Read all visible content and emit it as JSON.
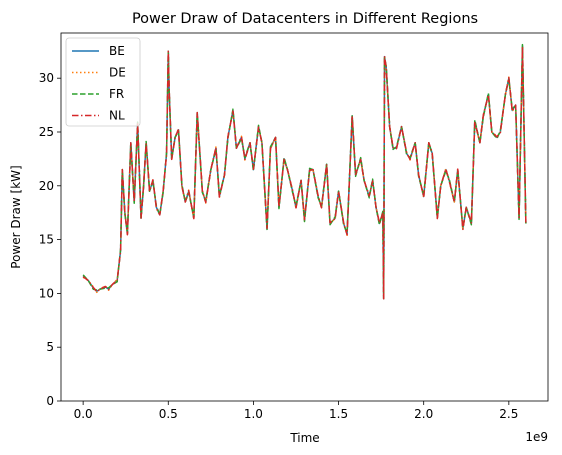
{
  "chart_data": {
    "type": "line",
    "title": "Power Draw of Datacenters in Different Regions",
    "xlabel": "Time",
    "ylabel": "Power Draw [kW]",
    "x_offset_label": "1e9",
    "xlim": [
      -0.13,
      2.73
    ],
    "ylim": [
      0,
      34.2
    ],
    "x_ticks": [
      0.0,
      0.5,
      1.0,
      1.5,
      2.0,
      2.5
    ],
    "x_tick_labels": [
      "0.0",
      "0.5",
      "1.0",
      "1.5",
      "2.0",
      "2.5"
    ],
    "y_ticks": [
      0,
      5,
      10,
      15,
      20,
      25,
      30
    ],
    "y_tick_labels": [
      "0",
      "5",
      "10",
      "15",
      "20",
      "25",
      "30"
    ],
    "legend_position": "upper-left",
    "grid": false,
    "series": [
      {
        "name": "BE",
        "color": "#1f77b4",
        "style": "solid"
      },
      {
        "name": "DE",
        "color": "#ff7f0e",
        "style": "dotted"
      },
      {
        "name": "FR",
        "color": "#2ca02c",
        "style": "dashed"
      },
      {
        "name": "NL",
        "color": "#d62728",
        "style": "dashdot"
      }
    ],
    "x": [
      0.0,
      0.03,
      0.06,
      0.08,
      0.1,
      0.13,
      0.15,
      0.17,
      0.2,
      0.22,
      0.23,
      0.245,
      0.26,
      0.28,
      0.3,
      0.32,
      0.34,
      0.355,
      0.37,
      0.39,
      0.41,
      0.43,
      0.45,
      0.47,
      0.49,
      0.5,
      0.505,
      0.52,
      0.54,
      0.56,
      0.58,
      0.6,
      0.62,
      0.65,
      0.67,
      0.7,
      0.72,
      0.75,
      0.78,
      0.8,
      0.83,
      0.85,
      0.88,
      0.9,
      0.93,
      0.95,
      0.98,
      1.0,
      1.03,
      1.05,
      1.08,
      1.1,
      1.13,
      1.15,
      1.18,
      1.2,
      1.23,
      1.25,
      1.28,
      1.3,
      1.33,
      1.35,
      1.38,
      1.4,
      1.43,
      1.45,
      1.48,
      1.5,
      1.53,
      1.55,
      1.58,
      1.6,
      1.63,
      1.65,
      1.68,
      1.7,
      1.72,
      1.74,
      1.76,
      1.765,
      1.77,
      1.78,
      1.8,
      1.82,
      1.84,
      1.87,
      1.9,
      1.92,
      1.95,
      1.97,
      2.0,
      2.03,
      2.05,
      2.08,
      2.1,
      2.13,
      2.15,
      2.18,
      2.2,
      2.23,
      2.25,
      2.28,
      2.3,
      2.33,
      2.35,
      2.38,
      2.4,
      2.43,
      2.45,
      2.48,
      2.5,
      2.52,
      2.54,
      2.56,
      2.58,
      2.6
    ],
    "y": [
      11.6,
      11.2,
      10.5,
      10.2,
      10.4,
      10.6,
      10.4,
      10.8,
      11.2,
      14.0,
      21.5,
      17.5,
      15.5,
      24.0,
      18.5,
      25.8,
      17.0,
      20.0,
      24.0,
      19.5,
      20.5,
      18.0,
      17.3,
      19.5,
      23.0,
      32.5,
      29.0,
      22.5,
      24.5,
      25.2,
      20.0,
      18.5,
      19.5,
      17.0,
      26.8,
      19.5,
      18.5,
      21.5,
      23.5,
      19.0,
      21.0,
      24.5,
      27.0,
      23.5,
      24.5,
      22.5,
      24.0,
      21.5,
      25.5,
      24.0,
      16.0,
      23.5,
      24.5,
      18.0,
      22.5,
      21.5,
      19.5,
      18.0,
      20.5,
      16.8,
      21.5,
      21.5,
      19.0,
      18.0,
      22.0,
      16.5,
      17.0,
      19.5,
      16.5,
      15.5,
      26.5,
      21.0,
      22.5,
      20.5,
      19.0,
      20.5,
      18.0,
      16.5,
      17.5,
      9.5,
      32.0,
      31.0,
      25.5,
      23.5,
      23.5,
      25.5,
      23.0,
      22.5,
      24.0,
      21.0,
      19.0,
      24.0,
      23.0,
      17.0,
      20.0,
      21.5,
      20.5,
      18.5,
      21.5,
      16.0,
      18.0,
      16.5,
      26.0,
      24.0,
      26.5,
      28.5,
      25.0,
      24.5,
      25.0,
      28.5,
      30.0,
      27.0,
      27.5,
      17.0,
      33.0,
      16.5
    ]
  }
}
